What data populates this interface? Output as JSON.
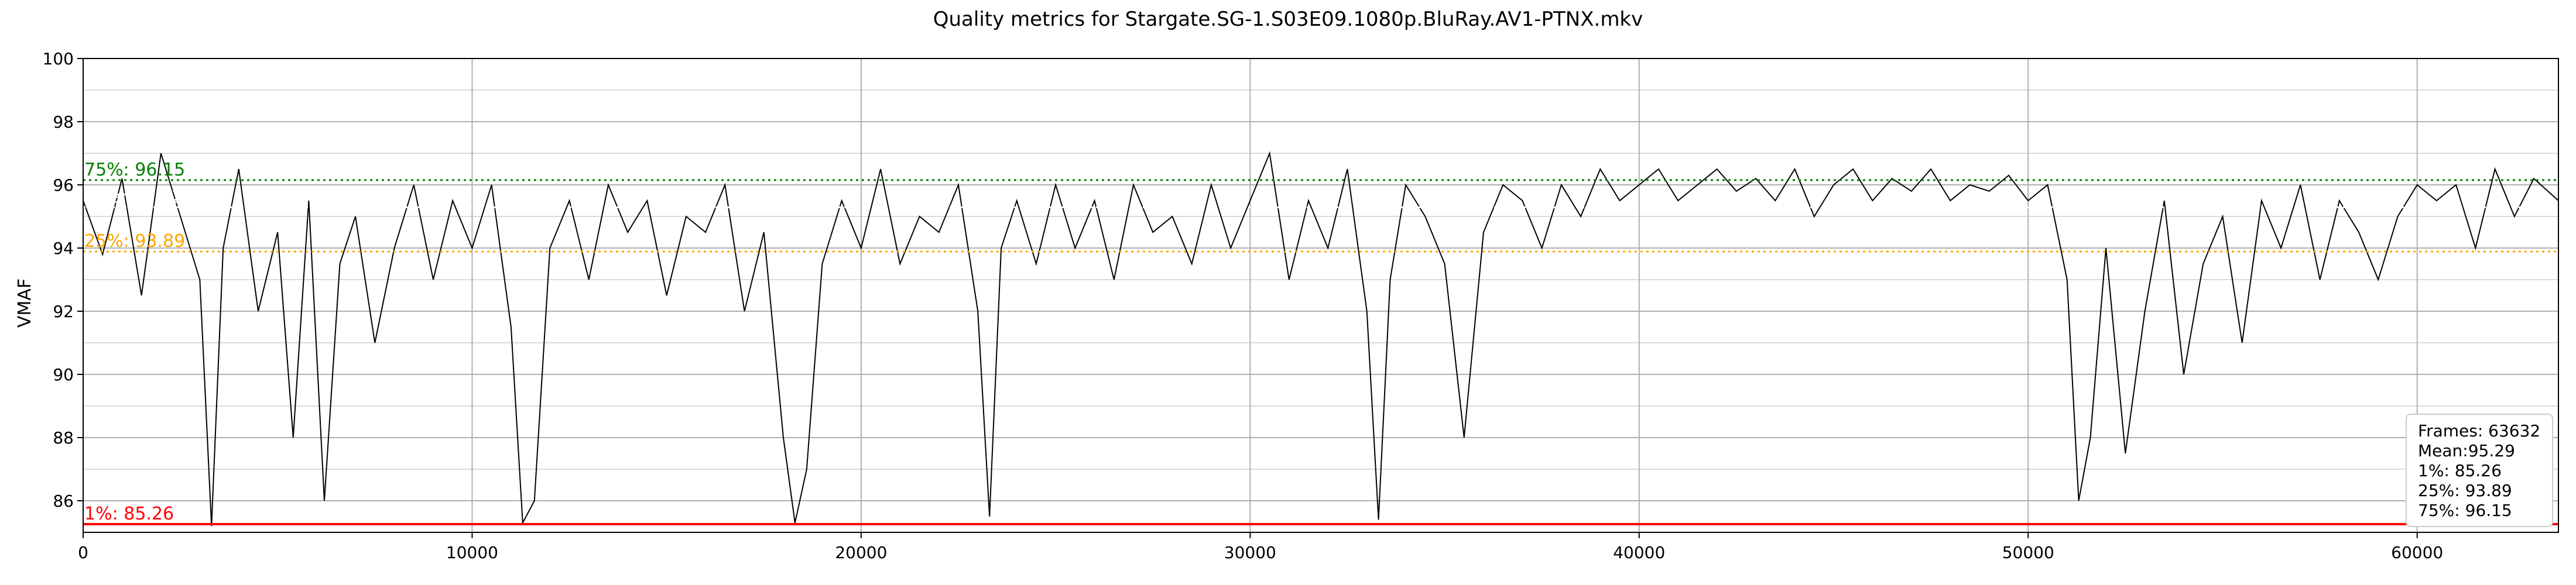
{
  "chart_data": {
    "type": "line",
    "title": "Quality metrics for Stargate.SG-1.S03E09.1080p.BluRay.AV1-PTNX.mkv",
    "xlabel": "",
    "ylabel": "VMAF",
    "xlim": [
      0,
      63632
    ],
    "ylim": [
      85,
      100
    ],
    "x_ticks": [
      0,
      10000,
      20000,
      30000,
      40000,
      50000,
      60000
    ],
    "y_ticks": [
      86,
      88,
      90,
      92,
      94,
      96,
      98,
      100
    ],
    "grid": true,
    "series": [
      {
        "color": "#000000",
        "sample_x": [
          0,
          500,
          1000,
          1500,
          2000,
          2500,
          3000,
          3300,
          3600,
          4000,
          4500,
          5000,
          5400,
          5800,
          6200,
          6600,
          7000,
          7500,
          8000,
          8500,
          9000,
          9500,
          10000,
          10500,
          11000,
          11300,
          11600,
          12000,
          12500,
          13000,
          13500,
          14000,
          14500,
          15000,
          15500,
          16000,
          16500,
          17000,
          17500,
          18000,
          18300,
          18600,
          19000,
          19500,
          20000,
          20500,
          21000,
          21500,
          22000,
          22500,
          23000,
          23300,
          23600,
          24000,
          24500,
          25000,
          25500,
          26000,
          26500,
          27000,
          27500,
          28000,
          28500,
          29000,
          29500,
          30000,
          30500,
          31000,
          31500,
          32000,
          32500,
          33000,
          33300,
          33600,
          34000,
          34500,
          35000,
          35500,
          36000,
          36500,
          37000,
          37500,
          38000,
          38500,
          39000,
          39500,
          40000,
          40500,
          41000,
          41500,
          42000,
          42500,
          43000,
          43500,
          44000,
          44500,
          45000,
          45500,
          46000,
          46500,
          47000,
          47500,
          48000,
          48500,
          49000,
          49500,
          50000,
          50500,
          51000,
          51300,
          51600,
          52000,
          52500,
          53000,
          53500,
          54000,
          54500,
          55000,
          55500,
          56000,
          56500,
          57000,
          57500,
          58000,
          58500,
          59000,
          59500,
          60000,
          60500,
          61000,
          61500,
          62000,
          62500,
          63000,
          63632
        ],
        "sample_y": [
          95.5,
          93.8,
          96.2,
          92.5,
          97.0,
          95.0,
          93.0,
          85.2,
          94.0,
          96.5,
          92.0,
          94.5,
          88.0,
          95.5,
          86.0,
          93.5,
          95.0,
          91.0,
          94.0,
          96.0,
          93.0,
          95.5,
          94.0,
          96.0,
          91.5,
          85.3,
          86.0,
          94.0,
          95.5,
          93.0,
          96.0,
          94.5,
          95.5,
          92.5,
          95.0,
          94.5,
          96.0,
          92.0,
          94.5,
          88.0,
          85.3,
          87.0,
          93.5,
          95.5,
          94.0,
          96.5,
          93.5,
          95.0,
          94.5,
          96.0,
          92.0,
          85.5,
          94.0,
          95.5,
          93.5,
          96.0,
          94.0,
          95.5,
          93.0,
          96.0,
          94.5,
          95.0,
          93.5,
          96.0,
          94.0,
          95.5,
          97.0,
          93.0,
          95.5,
          94.0,
          96.5,
          92.0,
          85.4,
          93.0,
          96.0,
          95.0,
          93.5,
          88.0,
          94.5,
          96.0,
          95.5,
          94.0,
          96.0,
          95.0,
          96.5,
          95.5,
          96.0,
          96.5,
          95.5,
          96.0,
          96.5,
          95.8,
          96.2,
          95.5,
          96.5,
          95.0,
          96.0,
          96.5,
          95.5,
          96.2,
          95.8,
          96.5,
          95.5,
          96.0,
          95.8,
          96.3,
          95.5,
          96.0,
          93.0,
          86.0,
          88.0,
          94.0,
          87.5,
          92.0,
          95.5,
          90.0,
          93.5,
          95.0,
          91.0,
          95.5,
          94.0,
          96.0,
          93.0,
          95.5,
          94.5,
          93.0,
          95.0,
          96.0,
          95.5,
          96.0,
          94.0,
          96.5,
          95.0,
          96.2,
          95.5,
          96.5,
          95.0
        ]
      }
    ],
    "reference_lines": [
      {
        "label": "75%: 96.15",
        "value": 96.15,
        "color": "#008000",
        "style": "dotted"
      },
      {
        "label": "Mean: 95.29",
        "value": 95.29,
        "color": "#ffffff",
        "style": "dotted"
      },
      {
        "label": "25%: 93.89",
        "value": 93.89,
        "color": "#ffa500",
        "style": "dotted"
      },
      {
        "label": "1%: 85.26",
        "value": 85.26,
        "color": "#ff0000",
        "style": "solid"
      }
    ],
    "stats_box": {
      "lines": [
        "Frames: 63632",
        "Mean:95.29",
        "1%: 85.26",
        "25%: 93.89",
        "75%: 96.15"
      ],
      "placement": "lower-right"
    }
  }
}
